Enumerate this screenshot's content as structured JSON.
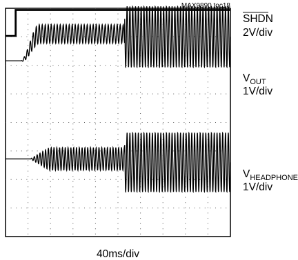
{
  "chart_data": {
    "type": "line",
    "caption": "MAX9890 toc18",
    "xlabel": "40ms/div",
    "grid": true,
    "grid_divisions": {
      "x": 10,
      "y": 8
    },
    "line_color": "#000000",
    "channels": [
      {
        "name": "SHDN",
        "name_overline": true,
        "scale": "2V/div"
      },
      {
        "name": "V",
        "name_subscript": "OUT",
        "scale": "1V/div"
      },
      {
        "name": "V",
        "name_subscript": "HEADPHONE",
        "scale": "1V/div"
      }
    ],
    "traces": {
      "shdn": {
        "points": [
          [
            0,
            3.03
          ],
          [
            0.45,
            3.03
          ],
          [
            0.45,
            3.94
          ],
          [
            10,
            3.94
          ]
        ]
      },
      "vout": {
        "baseline_div": 2.16,
        "ramp_start_div": 0.7,
        "ramp_end_div": 1.5,
        "ramp_settled_center_div": 3.1,
        "phase1_amplitude_div": 0.33,
        "phase2_start_div": 5.3,
        "phase2_amplitude_div": 1.07,
        "phase2_center_div": 3.0,
        "phase1_cycles_per_div": 7.5,
        "phase2_cycles_per_div": 8.0
      },
      "vheadphone": {
        "baseline_div": -1.28,
        "ramp_start_div": 1.1,
        "ramp_end_div": 2.2,
        "phase1_amplitude_div": 0.4,
        "phase2_start_div": 5.3,
        "phase2_amplitude_div": 1.04,
        "phase2_center_div": -1.4,
        "phase1_cycles_per_div": 8.0,
        "phase2_cycles_per_div": 8.0
      }
    }
  }
}
